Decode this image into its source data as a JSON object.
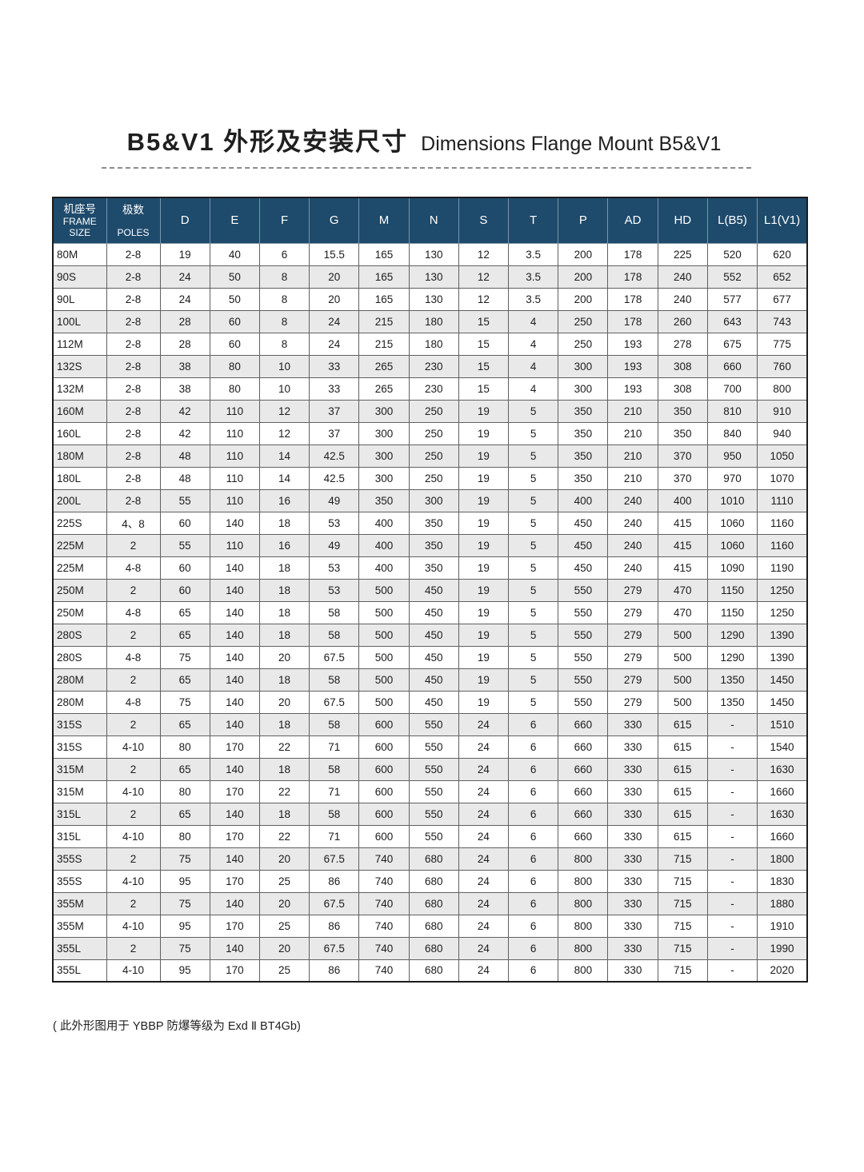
{
  "page": {
    "title_zh": "B5&V1 外形及安装尺寸",
    "title_en": "Dimensions Flange Mount B5&V1",
    "footnote": "( 此外形图用于 YBBP 防爆等级为 Exd Ⅱ BT4Gb)"
  },
  "colors": {
    "header_bg": "#1e4a6b",
    "row_alt_bg": "#e9e9e9",
    "border_dark": "#1c1c1c"
  },
  "table": {
    "headers": [
      {
        "zh": "机座号",
        "en": "FRAME SIZE",
        "key": "frame"
      },
      {
        "zh": "极数",
        "en": "POLES",
        "key": "poles"
      },
      "D",
      "E",
      "F",
      "G",
      "M",
      "N",
      "S",
      "T",
      "P",
      "AD",
      "HD",
      "L(B5)",
      "L1(V1)"
    ],
    "rows": [
      [
        "80M",
        "2-8",
        "19",
        "40",
        "6",
        "15.5",
        "165",
        "130",
        "12",
        "3.5",
        "200",
        "178",
        "225",
        "520",
        "620"
      ],
      [
        "90S",
        "2-8",
        "24",
        "50",
        "8",
        "20",
        "165",
        "130",
        "12",
        "3.5",
        "200",
        "178",
        "240",
        "552",
        "652"
      ],
      [
        "90L",
        "2-8",
        "24",
        "50",
        "8",
        "20",
        "165",
        "130",
        "12",
        "3.5",
        "200",
        "178",
        "240",
        "577",
        "677"
      ],
      [
        "100L",
        "2-8",
        "28",
        "60",
        "8",
        "24",
        "215",
        "180",
        "15",
        "4",
        "250",
        "178",
        "260",
        "643",
        "743"
      ],
      [
        "112M",
        "2-8",
        "28",
        "60",
        "8",
        "24",
        "215",
        "180",
        "15",
        "4",
        "250",
        "193",
        "278",
        "675",
        "775"
      ],
      [
        "132S",
        "2-8",
        "38",
        "80",
        "10",
        "33",
        "265",
        "230",
        "15",
        "4",
        "300",
        "193",
        "308",
        "660",
        "760"
      ],
      [
        "132M",
        "2-8",
        "38",
        "80",
        "10",
        "33",
        "265",
        "230",
        "15",
        "4",
        "300",
        "193",
        "308",
        "700",
        "800"
      ],
      [
        "160M",
        "2-8",
        "42",
        "110",
        "12",
        "37",
        "300",
        "250",
        "19",
        "5",
        "350",
        "210",
        "350",
        "810",
        "910"
      ],
      [
        "160L",
        "2-8",
        "42",
        "110",
        "12",
        "37",
        "300",
        "250",
        "19",
        "5",
        "350",
        "210",
        "350",
        "840",
        "940"
      ],
      [
        "180M",
        "2-8",
        "48",
        "110",
        "14",
        "42.5",
        "300",
        "250",
        "19",
        "5",
        "350",
        "210",
        "370",
        "950",
        "1050"
      ],
      [
        "180L",
        "2-8",
        "48",
        "110",
        "14",
        "42.5",
        "300",
        "250",
        "19",
        "5",
        "350",
        "210",
        "370",
        "970",
        "1070"
      ],
      [
        "200L",
        "2-8",
        "55",
        "110",
        "16",
        "49",
        "350",
        "300",
        "19",
        "5",
        "400",
        "240",
        "400",
        "1010",
        "1110"
      ],
      [
        "225S",
        "4、8",
        "60",
        "140",
        "18",
        "53",
        "400",
        "350",
        "19",
        "5",
        "450",
        "240",
        "415",
        "1060",
        "1160"
      ],
      [
        "225M",
        "2",
        "55",
        "110",
        "16",
        "49",
        "400",
        "350",
        "19",
        "5",
        "450",
        "240",
        "415",
        "1060",
        "1160"
      ],
      [
        "225M",
        "4-8",
        "60",
        "140",
        "18",
        "53",
        "400",
        "350",
        "19",
        "5",
        "450",
        "240",
        "415",
        "1090",
        "1190"
      ],
      [
        "250M",
        "2",
        "60",
        "140",
        "18",
        "53",
        "500",
        "450",
        "19",
        "5",
        "550",
        "279",
        "470",
        "1150",
        "1250"
      ],
      [
        "250M",
        "4-8",
        "65",
        "140",
        "18",
        "58",
        "500",
        "450",
        "19",
        "5",
        "550",
        "279",
        "470",
        "1150",
        "1250"
      ],
      [
        "280S",
        "2",
        "65",
        "140",
        "18",
        "58",
        "500",
        "450",
        "19",
        "5",
        "550",
        "279",
        "500",
        "1290",
        "1390"
      ],
      [
        "280S",
        "4-8",
        "75",
        "140",
        "20",
        "67.5",
        "500",
        "450",
        "19",
        "5",
        "550",
        "279",
        "500",
        "1290",
        "1390"
      ],
      [
        "280M",
        "2",
        "65",
        "140",
        "18",
        "58",
        "500",
        "450",
        "19",
        "5",
        "550",
        "279",
        "500",
        "1350",
        "1450"
      ],
      [
        "280M",
        "4-8",
        "75",
        "140",
        "20",
        "67.5",
        "500",
        "450",
        "19",
        "5",
        "550",
        "279",
        "500",
        "1350",
        "1450"
      ],
      [
        "315S",
        "2",
        "65",
        "140",
        "18",
        "58",
        "600",
        "550",
        "24",
        "6",
        "660",
        "330",
        "615",
        "-",
        "1510"
      ],
      [
        "315S",
        "4-10",
        "80",
        "170",
        "22",
        "71",
        "600",
        "550",
        "24",
        "6",
        "660",
        "330",
        "615",
        "-",
        "1540"
      ],
      [
        "315M",
        "2",
        "65",
        "140",
        "18",
        "58",
        "600",
        "550",
        "24",
        "6",
        "660",
        "330",
        "615",
        "-",
        "1630"
      ],
      [
        "315M",
        "4-10",
        "80",
        "170",
        "22",
        "71",
        "600",
        "550",
        "24",
        "6",
        "660",
        "330",
        "615",
        "-",
        "1660"
      ],
      [
        "315L",
        "2",
        "65",
        "140",
        "18",
        "58",
        "600",
        "550",
        "24",
        "6",
        "660",
        "330",
        "615",
        "-",
        "1630"
      ],
      [
        "315L",
        "4-10",
        "80",
        "170",
        "22",
        "71",
        "600",
        "550",
        "24",
        "6",
        "660",
        "330",
        "615",
        "-",
        "1660"
      ],
      [
        "355S",
        "2",
        "75",
        "140",
        "20",
        "67.5",
        "740",
        "680",
        "24",
        "6",
        "800",
        "330",
        "715",
        "-",
        "1800"
      ],
      [
        "355S",
        "4-10",
        "95",
        "170",
        "25",
        "86",
        "740",
        "680",
        "24",
        "6",
        "800",
        "330",
        "715",
        "-",
        "1830"
      ],
      [
        "355M",
        "2",
        "75",
        "140",
        "20",
        "67.5",
        "740",
        "680",
        "24",
        "6",
        "800",
        "330",
        "715",
        "-",
        "1880"
      ],
      [
        "355M",
        "4-10",
        "95",
        "170",
        "25",
        "86",
        "740",
        "680",
        "24",
        "6",
        "800",
        "330",
        "715",
        "-",
        "1910"
      ],
      [
        "355L",
        "2",
        "75",
        "140",
        "20",
        "67.5",
        "740",
        "680",
        "24",
        "6",
        "800",
        "330",
        "715",
        "-",
        "1990"
      ],
      [
        "355L",
        "4-10",
        "95",
        "170",
        "25",
        "86",
        "740",
        "680",
        "24",
        "6",
        "800",
        "330",
        "715",
        "-",
        "2020"
      ]
    ]
  }
}
